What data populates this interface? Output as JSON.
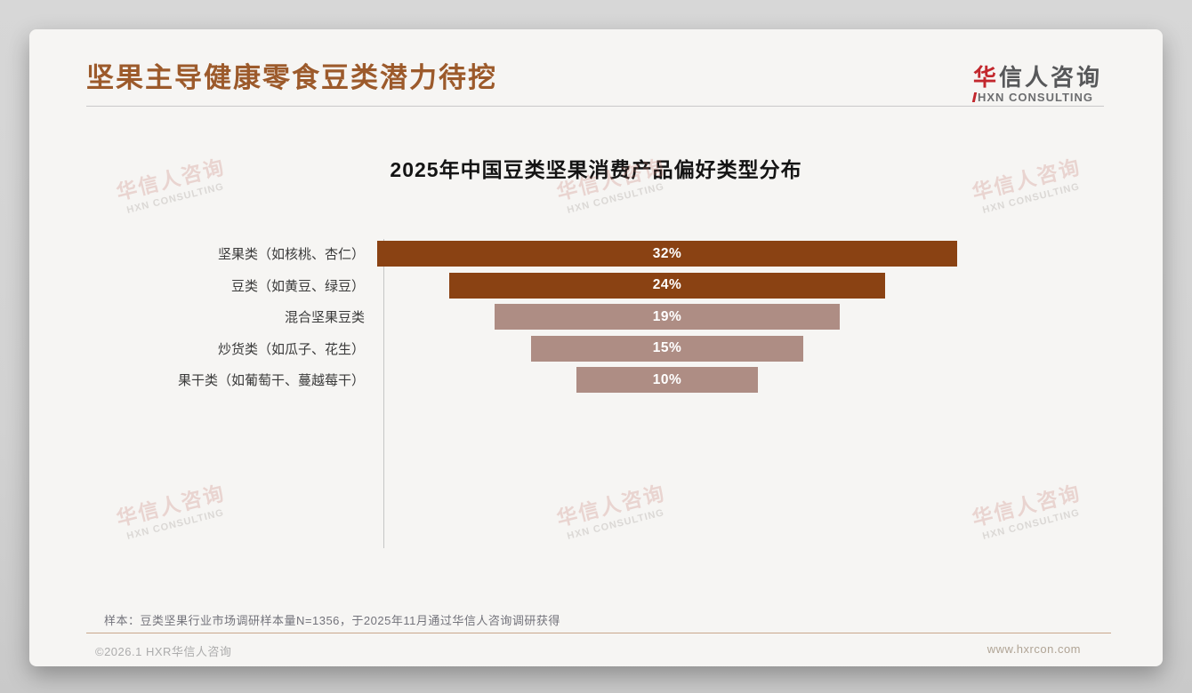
{
  "page": {
    "slide_title": "坚果主导健康零食豆类潜力待挖",
    "logo": {
      "cn_first": "华",
      "cn_rest": "信人咨询",
      "en": "HXN CONSULTING"
    },
    "watermark": {
      "cn": "华信人咨询",
      "en": "HXN CONSULTING"
    },
    "sample_note": "样本：豆类坚果行业市场调研样本量N=1356，于2025年11月通过华信人咨询调研获得",
    "copyright": "©2026.1 HXR华信人咨询",
    "website": "www.hxrcon.com"
  },
  "chart_data": {
    "type": "bar",
    "variant": "centered-horizontal-funnel",
    "title": "2025年中国豆类坚果消费产品偏好类型分布",
    "categories": [
      "坚果类（如核桃、杏仁）",
      "豆类（如黄豆、绿豆）",
      "混合坚果豆类",
      "炒货类（如瓜子、花生）",
      "果干类（如葡萄干、蔓越莓干）"
    ],
    "values": [
      32,
      24,
      19,
      15,
      10
    ],
    "unit": "%",
    "value_labels": [
      "32%",
      "24%",
      "19%",
      "15%",
      "10%"
    ],
    "bar_colors": [
      "#8a4213",
      "#8a4213",
      "#ae8d84",
      "#ae8d84",
      "#ae8d84"
    ],
    "value_label_color": "#ffffff",
    "grid": false,
    "legend": false,
    "xlim": [
      0,
      40
    ]
  },
  "colors": {
    "title_brown": "#9c5a2b",
    "logo_red": "#c2272d",
    "logo_gray": "#57585a",
    "dark_bar": "#8a4213",
    "light_bar": "#ae8d84",
    "footer_divider_tan": "#c9a78c",
    "card_bg": "#f6f5f3"
  }
}
